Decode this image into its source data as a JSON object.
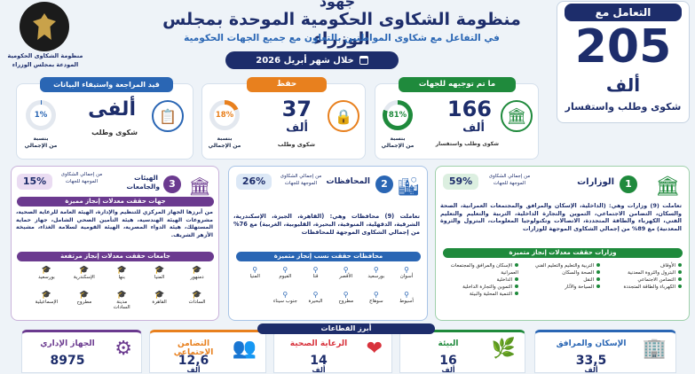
{
  "header": {
    "top_cut": "جهود",
    "title": "منظومة الشكاوى الحكومية الموحدة بمجلس الوزراء",
    "subtitle": "في التفاعل مع شكاوى المواطنين بالتعاون مع جميع الجهات الحكومية",
    "period": "خلال شهر أبريل 2026",
    "logo_text_1": "منظومة الشكاوى الحكومية",
    "logo_text_2": "المودعة بمجلس الوزراء"
  },
  "total": {
    "label": "التعامل مع",
    "value": "205",
    "unit": "ألف",
    "desc": "شكوى وطلب واستفسار"
  },
  "directed": {
    "title": "ما تم توجيهه للجهات",
    "value": "166",
    "unit": "ألف",
    "desc": "شكوى وطلب واستفسار",
    "pct": "81%",
    "pct_label_1": "بنسبة",
    "pct_label_2": "من الإجمالي",
    "pct_value": 81
  },
  "saved": {
    "title": "حفظ",
    "value": "37",
    "unit": "ألف",
    "desc": "شكوى وطلب",
    "pct": "18%",
    "pct_label_1": "بنسبة",
    "pct_label_2": "من الإجمالي",
    "pct_value": 18
  },
  "review": {
    "title": "قيد المراجعة واستيفاء البيانات",
    "value": "ألفى",
    "desc": "شكوى وطلب",
    "pct": "1%",
    "pct_label_1": "بنسبة",
    "pct_label_2": "من الإجمالي",
    "pct_value": 1
  },
  "ministries": {
    "num": "1",
    "title": "الوزارات",
    "pct": "59%",
    "pct_desc_1": "من إجمالي الشكاوى",
    "pct_desc_2": "الموجهة للجهات",
    "text": "تعاملت (9) وزارات وهي: (الداخلية، الإسكان والمرافق والمجتمعات العمرانية، الصحة والسكان، التضامن الاجتماعي، التموين والتجارة الداخلية، التربية والتعليم والتعليم الفني، الكهرباء والطاقة المتجددة، الاتصالات وتكنولوجيا المعلومات، البترول والثروة المعدنية) مع 89% من إجمالي الشكاوى الموجهة للوزارات",
    "bar": "وزارات حققت معدلات إنجاز متميزة",
    "col1": [
      "الأوقاف",
      "البترول والثروة المعدنية",
      "التضامن الاجتماعي",
      "الكهرباء والطاقة المتجددة"
    ],
    "col2": [
      "التربية والتعليم والتعليم الفني",
      "الصحة والسكان",
      "النقل",
      "السياحة والآثار"
    ],
    "col3": [
      "الإسكان والمرافق والمجتمعات العمرانية",
      "الداخلية",
      "التموين والتجارة الداخلية",
      "التنمية المحلية والبيئة"
    ]
  },
  "governorates": {
    "num": "2",
    "title": "المحافظات",
    "pct": "26%",
    "pct_desc_1": "من إجمالي الشكاوى",
    "pct_desc_2": "الموجهة للجهات",
    "text": "تعاملت (9) محافظات وهي: (القاهرة، الجيزة، الإسكندرية، الشرقية، الدقهلية، المنوفية، البحيرة، القليوبية، الغربية) مع 76% من إجمالي الشكاوى الموجهة للمحافظات",
    "bar": "محافظات حققت نسب إنجاز متميزة",
    "row1": [
      "أسوان",
      "بورسعيد",
      "الأقصر",
      "قنا",
      "الفيوم",
      "المنيا"
    ],
    "row2": [
      "أسيوط",
      "سوهاج",
      "مطروح",
      "البحيرة",
      "جنوب سيناء"
    ]
  },
  "bodies": {
    "num": "3",
    "title_1": "الهيئات",
    "title_2": "والجامعات",
    "pct": "15%",
    "pct_desc_1": "من إجمالي الشكاوى",
    "pct_desc_2": "الموجهة للجهات",
    "bar1": "جهات حققت معدلات إنجاز مميزة",
    "text": "من أبرزها الجهاز المركزي للتنظيم والإدارة، الهيئة العامة للرعاية الصحية، مشروعات الهيئة الهندسية، هيئة التأمين الصحي الشامل، جهاز حماية المستهلك، هيئة الدواء المصرية، الهيئة القومية لسلامة الغذاء، مشيخة الأزهر الشريف.",
    "bar2": "جامعات حققت معدلات إنجاز مرتفعة",
    "row1": [
      "دمنهور",
      "المنيا",
      "بنها",
      "الإسكندرية",
      "بورسعيد"
    ],
    "row2": [
      "السادات",
      "القاهرة",
      "مدينة السادات",
      "مطروح",
      "الإسماعيلية"
    ]
  },
  "sectors": {
    "title": "أبرز القطاعات",
    "items": [
      {
        "name": "الإسكان والمرافق",
        "value": "33,5",
        "unit": "ألف"
      },
      {
        "name": "البيئة",
        "value": "16",
        "unit": "ألف"
      },
      {
        "name": "الرعاية الصحية",
        "value": "14",
        "unit": "ألف"
      },
      {
        "name": "التضامن الاجتماعي",
        "value": "12,6",
        "unit": "ألف"
      },
      {
        "name": "الجهاز الإداري",
        "value": "8975",
        "unit": ""
      }
    ]
  },
  "colors": {
    "navy": "#1d2d6b",
    "green": "#1f8a3c",
    "orange": "#e8801e",
    "blue": "#2a66b4",
    "purple": "#6b3a8f",
    "red": "#d8323c"
  }
}
